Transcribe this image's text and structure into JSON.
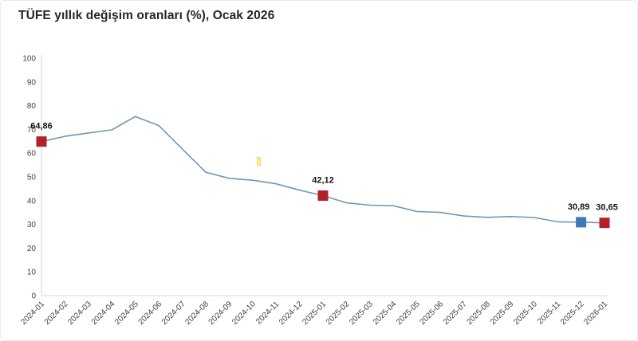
{
  "title": "TÜFE yıllık değişim oranları (%), Ocak 2026",
  "chart_data": {
    "type": "line",
    "title": "TÜFE yıllık değişim oranları (%), Ocak 2026",
    "xlabel": "",
    "ylabel": "",
    "ylim": [
      0,
      100
    ],
    "ytick_step": 10,
    "grid": false,
    "legend": "none",
    "line_color": "#7396b4",
    "axis_color": "#d6d6d6",
    "categories": [
      "2024-01",
      "2024-02",
      "2024-03",
      "2024-04",
      "2024-05",
      "2024-06",
      "2024-07",
      "2024-08",
      "2024-09",
      "2024-10",
      "2024-11",
      "2024-12",
      "2025-01",
      "2025-02",
      "2025-03",
      "2025-04",
      "2025-05",
      "2025-06",
      "2025-07",
      "2025-08",
      "2025-09",
      "2025-10",
      "2025-11",
      "2025-12",
      "2026-01"
    ],
    "series": [
      {
        "name": "TÜFE yıllık değişim oranı (%)",
        "values": [
          64.86,
          67.07,
          68.5,
          69.8,
          75.45,
          71.6,
          61.78,
          51.97,
          49.38,
          48.58,
          47.09,
          44.38,
          42.12,
          39.05,
          38.1,
          37.86,
          35.41,
          35.05,
          33.52,
          32.95,
          33.29,
          32.87,
          31.07,
          30.89,
          30.65
        ]
      }
    ],
    "annotations": [
      {
        "category": "2024-01",
        "value": 64.86,
        "label": "64,86",
        "marker": "square",
        "marker_color": "#b02128",
        "dx": 0
      },
      {
        "category": "2025-01",
        "value": 42.12,
        "label": "42,12",
        "marker": "square",
        "marker_color": "#b02128",
        "dx": 0
      },
      {
        "category": "2025-12",
        "value": 30.89,
        "label": "30,89",
        "marker": "square",
        "marker_color": "#3d7ab8",
        "dx": -3
      },
      {
        "category": "2026-01",
        "value": 30.65,
        "label": "30,65",
        "marker": "square",
        "marker_color": "#b02128",
        "dx": 3
      }
    ]
  }
}
